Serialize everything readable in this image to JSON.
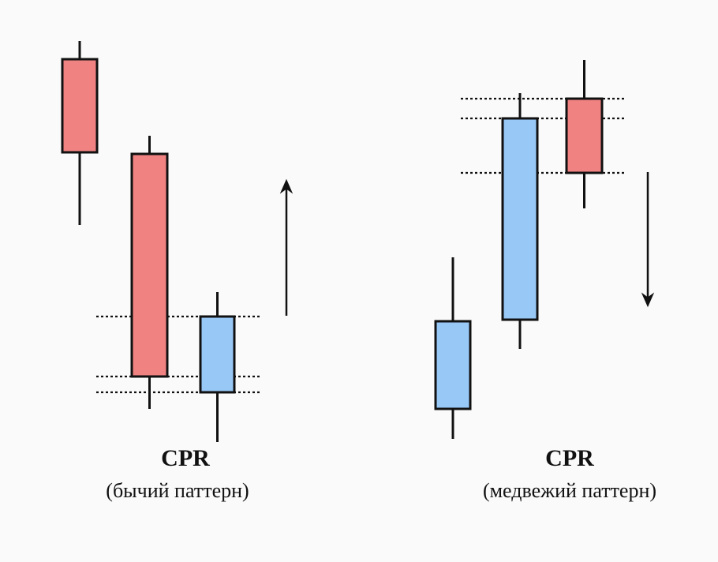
{
  "colors": {
    "background": "#fafafa",
    "bearish": "#f08282",
    "bullish": "#98c8f6",
    "outline": "#111111"
  },
  "patterns": [
    {
      "id": "bullish",
      "title": "CPR",
      "subtitle": "(бычий паттерн)",
      "arrow": "up",
      "candles": [
        {
          "color": "bearish"
        },
        {
          "color": "bearish"
        },
        {
          "color": "bullish"
        }
      ]
    },
    {
      "id": "bearish",
      "title": "CPR",
      "subtitle": "(медвежий паттерн)",
      "arrow": "down",
      "candles": [
        {
          "color": "bullish"
        },
        {
          "color": "bullish"
        },
        {
          "color": "bearish"
        }
      ]
    }
  ]
}
